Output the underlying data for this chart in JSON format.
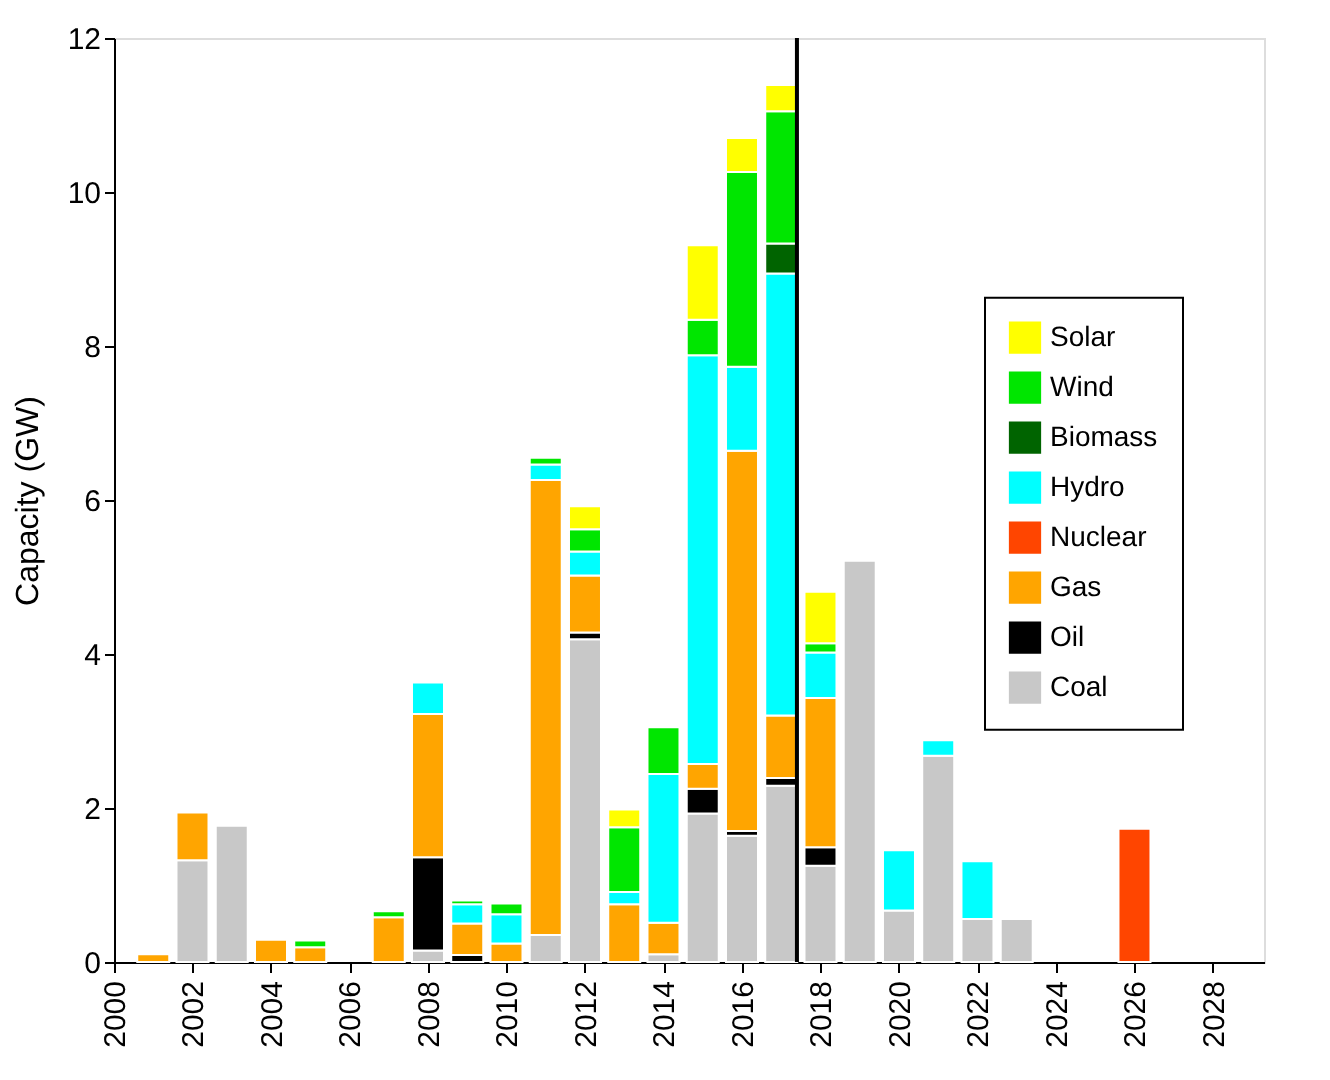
{
  "chart_data": {
    "type": "bar",
    "stacked": true,
    "ylabel": "Capacity (GW)",
    "x": [
      2001,
      2002,
      2003,
      2004,
      2005,
      2006,
      2007,
      2008,
      2009,
      2010,
      2011,
      2012,
      2013,
      2014,
      2015,
      2016,
      2017,
      2018,
      2019,
      2020,
      2021,
      2022,
      2023,
      2026
    ],
    "xlim": [
      2000,
      2029.3
    ],
    "xticks": [
      2000,
      2002,
      2004,
      2006,
      2008,
      2010,
      2012,
      2014,
      2016,
      2018,
      2020,
      2022,
      2024,
      2026,
      2028
    ],
    "ylim": [
      0,
      12
    ],
    "yticks": [
      0,
      2,
      4,
      6,
      8,
      10,
      12
    ],
    "grid": false,
    "legend": "right",
    "ref_lines": [
      {
        "axis": "x",
        "value": 2017.4,
        "color": "#000000"
      }
    ],
    "series": [
      {
        "name": "Coal",
        "color": "#c8c8c8",
        "values": [
          null,
          1.32,
          1.77,
          null,
          null,
          null,
          null,
          0.15,
          null,
          null,
          0.35,
          4.19,
          null,
          0.1,
          1.93,
          1.64,
          2.29,
          1.25,
          5.21,
          0.67,
          2.68,
          0.56,
          0.56,
          null
        ]
      },
      {
        "name": "Oil",
        "color": "#000000",
        "values": [
          null,
          null,
          null,
          null,
          null,
          null,
          null,
          1.21,
          0.09,
          null,
          null,
          0.09,
          null,
          null,
          0.32,
          0.06,
          0.1,
          0.24,
          null,
          null,
          null,
          null,
          null,
          null
        ]
      },
      {
        "name": "Gas",
        "color": "#ffa500",
        "values": [
          0.1,
          0.62,
          null,
          0.29,
          0.19,
          null,
          0.58,
          1.86,
          0.41,
          0.24,
          5.91,
          0.74,
          0.75,
          0.41,
          0.32,
          4.94,
          0.81,
          1.94,
          null,
          null,
          null,
          null,
          null,
          null
        ]
      },
      {
        "name": "Nuclear",
        "color": "#ff4500",
        "values": [
          null,
          null,
          null,
          null,
          null,
          null,
          null,
          null,
          null,
          null,
          null,
          null,
          null,
          null,
          null,
          null,
          null,
          null,
          null,
          null,
          null,
          null,
          null,
          1.73
        ]
      },
      {
        "name": "Hydro",
        "color": "#00ffff",
        "values": [
          null,
          null,
          null,
          null,
          null,
          null,
          null,
          0.41,
          0.25,
          0.38,
          0.2,
          0.31,
          0.16,
          1.93,
          5.31,
          1.09,
          5.74,
          0.59,
          null,
          0.78,
          0.2,
          0.75,
          null,
          null
        ]
      },
      {
        "name": "Biomass",
        "color": "#006400",
        "values": [
          null,
          null,
          null,
          null,
          null,
          null,
          null,
          null,
          null,
          null,
          null,
          null,
          null,
          null,
          null,
          null,
          0.39,
          null,
          null,
          null,
          null,
          null,
          null,
          null
        ]
      },
      {
        "name": "Wind",
        "color": "#00e600",
        "values": [
          null,
          null,
          null,
          null,
          0.09,
          null,
          0.08,
          null,
          0.05,
          0.14,
          0.09,
          0.29,
          0.84,
          0.61,
          0.46,
          2.53,
          1.72,
          0.12,
          null,
          null,
          null,
          null,
          null,
          null
        ]
      },
      {
        "name": "Solar",
        "color": "#ffff00",
        "values": [
          null,
          null,
          null,
          null,
          null,
          null,
          null,
          null,
          null,
          null,
          null,
          0.3,
          0.23,
          null,
          0.97,
          0.44,
          0.34,
          0.67,
          null,
          null,
          null,
          null,
          null,
          null
        ]
      }
    ]
  }
}
